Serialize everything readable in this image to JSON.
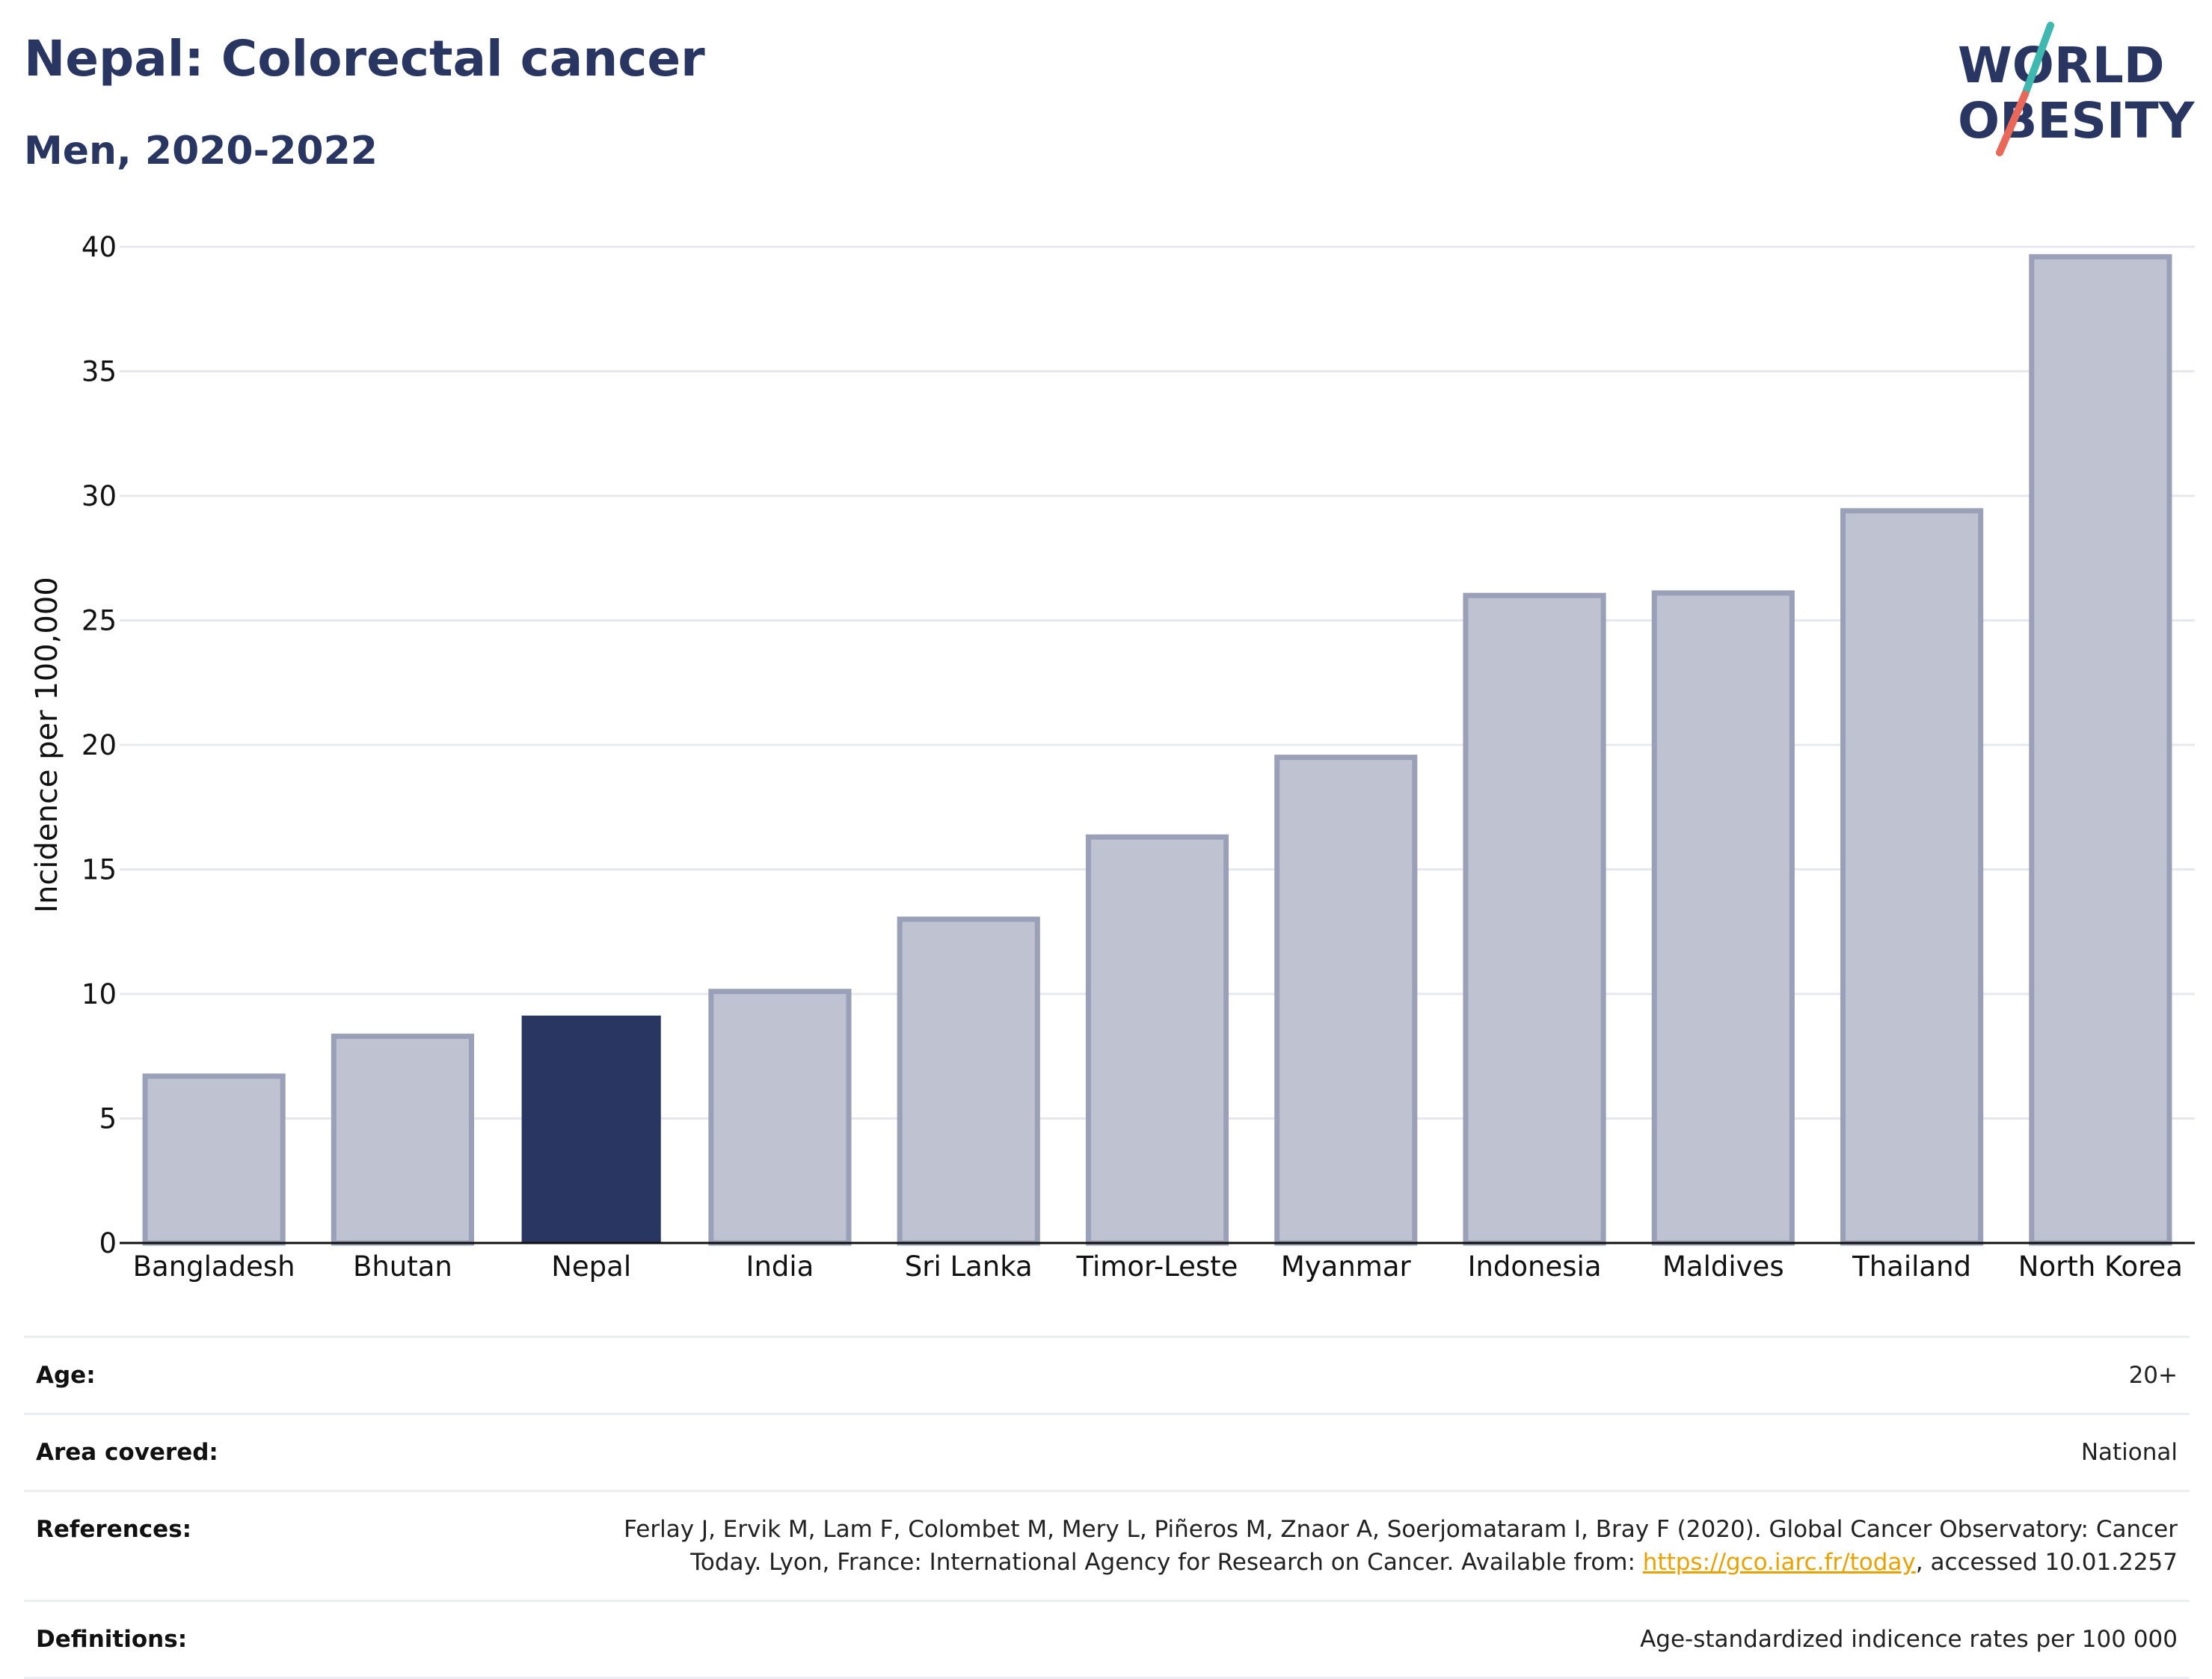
{
  "title": "Nepal: Colorectal cancer",
  "subtitle": "Men, 2020-2022",
  "logo": {
    "line1": "WORLD",
    "line2": "OBESITY",
    "text_color": "#2a3662",
    "slash_top": "#3fb8b0",
    "slash_bottom": "#e8685a"
  },
  "chart_data": {
    "type": "bar",
    "categories": [
      "Bangladesh",
      "Bhutan",
      "Nepal",
      "India",
      "Sri Lanka",
      "Timor-Leste",
      "Myanmar",
      "Indonesia",
      "Maldives",
      "Thailand",
      "North Korea"
    ],
    "values": [
      6.7,
      8.3,
      9.1,
      10.1,
      13.0,
      16.3,
      19.5,
      26.0,
      26.1,
      29.4,
      39.6
    ],
    "highlight": "Nepal",
    "ylabel": "Incidence per 100,000",
    "xlabel": "",
    "ylim": [
      0,
      40
    ],
    "yticks": [
      0,
      5,
      10,
      15,
      20,
      25,
      30,
      35,
      40
    ],
    "grid": true,
    "colors": {
      "highlight": "#2a3662",
      "other_fill": "#bfc2d0",
      "other_stroke": "#9aa0b8",
      "grid": "#e6e8ee",
      "axis": "#111111"
    }
  },
  "meta": {
    "age_label": "Age:",
    "age_value": "20+",
    "area_label": "Area covered:",
    "area_value": "National",
    "references_label": "References:",
    "references_line1": "Ferlay J, Ervik M, Lam F, Colombet M, Mery L, Piñeros M, Znaor A, Soerjomataram I, Bray F (2020). Global Cancer Observatory: Cancer",
    "references_line2_pre": "Today. Lyon, France: International Agency for Research on Cancer. Available from: ",
    "references_link": "https://gco.iarc.fr/today",
    "references_line2_post": ", accessed 10.01.2257",
    "definitions_label": "Definitions:",
    "definitions_value": "Age-standardized indicence rates per 100 000"
  }
}
